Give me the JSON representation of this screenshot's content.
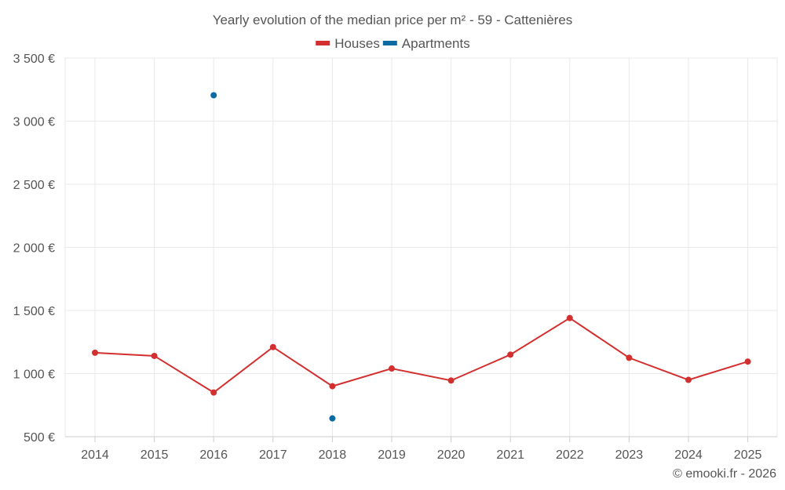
{
  "chart_data": {
    "type": "line",
    "title": "Yearly evolution of the median price per m² - 59 - Cattenières",
    "xlabel": "",
    "ylabel": "",
    "categories": [
      "2014",
      "2015",
      "2016",
      "2017",
      "2018",
      "2019",
      "2020",
      "2021",
      "2022",
      "2023",
      "2024",
      "2025"
    ],
    "ylim": [
      500,
      3500
    ],
    "y_ticks": [
      500,
      1000,
      1500,
      2000,
      2500,
      3000,
      3500
    ],
    "y_tick_labels": [
      "500 €",
      "1 000 €",
      "1 500 €",
      "2 000 €",
      "2 500 €",
      "3 000 €",
      "3 500 €"
    ],
    "grid": true,
    "legend_position": "top-center",
    "series": [
      {
        "name": "Houses",
        "color": "#d32f2f",
        "values": [
          1165,
          1140,
          850,
          1210,
          900,
          1040,
          945,
          1150,
          1440,
          1125,
          950,
          1095
        ]
      },
      {
        "name": "Apartments",
        "color": "#0a6aa1",
        "values": [
          null,
          null,
          3205,
          null,
          645,
          null,
          null,
          null,
          null,
          null,
          null,
          null
        ]
      }
    ]
  },
  "credit": "© emooki.fr - 2026"
}
